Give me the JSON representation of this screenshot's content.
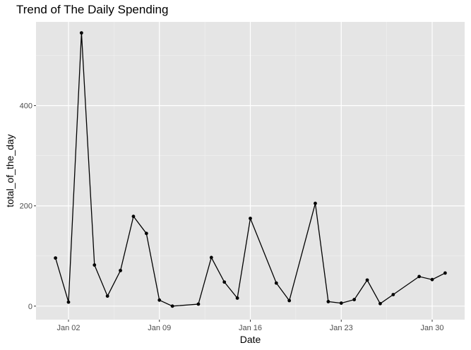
{
  "chart_data": {
    "type": "line",
    "title": "Trend of The Daily Spending",
    "xlabel": "Date",
    "ylabel": "total_of_the_day",
    "x_tick_labels": [
      "Jan 02",
      "Jan 09",
      "Jan 16",
      "Jan 23",
      "Jan 30"
    ],
    "x_tick_days": [
      2,
      9,
      16,
      23,
      30
    ],
    "xlim_days": [
      -0.5,
      32.5
    ],
    "y_ticks": [
      0,
      200,
      400
    ],
    "ylim": [
      -27,
      567
    ],
    "grid": true,
    "series": [
      {
        "name": "total_of_the_day",
        "x_days": [
          1,
          2,
          3,
          4,
          5,
          6,
          7,
          8,
          9,
          10,
          12,
          13,
          14,
          15,
          16,
          18,
          19,
          21,
          22,
          23,
          24,
          25,
          26,
          27,
          29,
          30,
          31
        ],
        "values": [
          96,
          8,
          545,
          82,
          20,
          71,
          179,
          145,
          12,
          0,
          4,
          97,
          48,
          16,
          175,
          46,
          11,
          205,
          9,
          6,
          13,
          52,
          5,
          23,
          59,
          53,
          66
        ]
      }
    ]
  }
}
